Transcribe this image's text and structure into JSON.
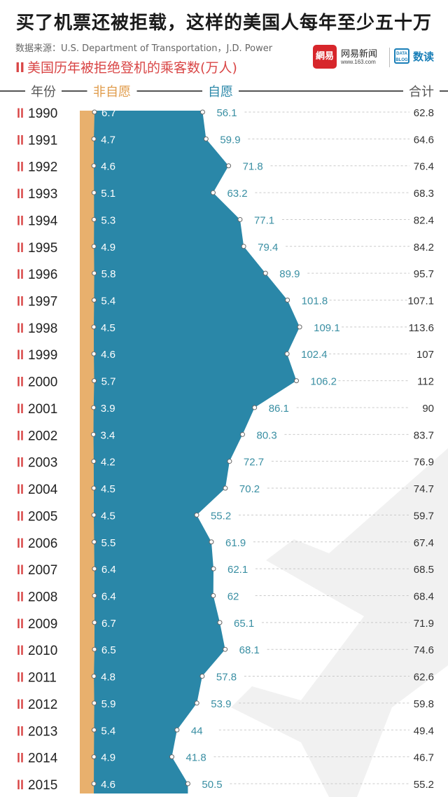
{
  "title": "买了机票还被拒载，这样的美国人每年至少五十万",
  "source": "数据来源：U.S. Department of Transportation，J.D. Power",
  "subtitle": "美国历年被拒绝登机的乘客数(万人)",
  "logos": {
    "netease_mark": "網易",
    "netease_text": "网易新闻",
    "netease_url": "www.163.com",
    "datablog_mark": "DATA BLOG",
    "datablog_text": "数读"
  },
  "colors": {
    "involuntary": "#e8b06d",
    "voluntary": "#2a87a8",
    "title_red": "#d94646",
    "label_teal": "#3a8fa3",
    "label_white": "#ffffff"
  },
  "chart_data": {
    "type": "area",
    "columns": [
      "年份",
      "非自愿",
      "自愿",
      "合计"
    ],
    "series": [
      {
        "name": "非自愿",
        "values": [
          6.7,
          4.7,
          4.6,
          5.1,
          5.3,
          4.9,
          5.8,
          5.4,
          4.5,
          4.6,
          5.7,
          3.9,
          3.4,
          4.2,
          4.5,
          4.5,
          5.5,
          6.4,
          6.4,
          6.7,
          6.5,
          4.8,
          5.9,
          5.4,
          4.9,
          4.6
        ]
      },
      {
        "name": "自愿",
        "values": [
          56.1,
          59.9,
          71.8,
          63.2,
          77.1,
          79.4,
          89.9,
          101.8,
          109.1,
          102.4,
          106.2,
          86.1,
          80.3,
          72.7,
          70.2,
          55.2,
          61.9,
          62.1,
          62,
          65.1,
          68.1,
          57.8,
          53.9,
          44,
          41.8,
          50.5
        ]
      }
    ],
    "categories": [
      "1990",
      "1991",
      "1992",
      "1993",
      "1994",
      "1995",
      "1996",
      "1997",
      "1998",
      "1999",
      "2000",
      "2001",
      "2002",
      "2003",
      "2004",
      "2005",
      "2006",
      "2007",
      "2008",
      "2009",
      "2010",
      "2011",
      "2012",
      "2013",
      "2014",
      "2015"
    ],
    "totals": [
      "62.8",
      "64.6",
      "76.4",
      "68.3",
      "82.4",
      "84.2",
      "95.7",
      "107.1",
      "113.6",
      "107",
      "112",
      "90",
      "83.7",
      "76.9",
      "74.7",
      "59.7",
      "67.4",
      "68.5",
      "68.4",
      "71.9",
      "74.6",
      "62.6",
      "59.8",
      "49.4",
      "46.7",
      "55.2"
    ],
    "orientation": "vertical"
  }
}
